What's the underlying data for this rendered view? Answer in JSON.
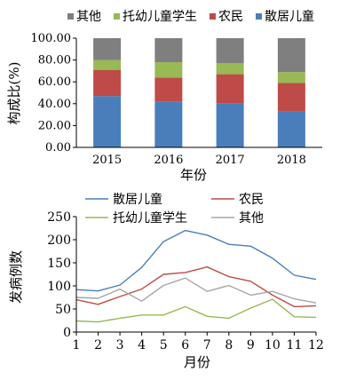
{
  "chart_data": [
    {
      "type": "bar",
      "stacked": true,
      "categories": [
        "2015",
        "2016",
        "2017",
        "2018"
      ],
      "series": [
        {
          "name": "散居儿童",
          "color": "#4a7ebb",
          "values": [
            47,
            42,
            40,
            33
          ]
        },
        {
          "name": "农民",
          "color": "#be4b48",
          "values": [
            24,
            22,
            27,
            26
          ]
        },
        {
          "name": "托幼儿童学生",
          "color": "#98b954",
          "values": [
            9,
            14,
            10,
            10
          ]
        },
        {
          "name": "其他",
          "color": "#7f7f7f",
          "values": [
            20,
            22,
            23,
            31
          ]
        }
      ],
      "legend_order": [
        3,
        2,
        1,
        0
      ],
      "legend_position": "top",
      "xlabel": "年份",
      "ylabel": "构成比(%)",
      "ylim": [
        0,
        100
      ],
      "yticks": [
        "0.00",
        "20.00",
        "40.00",
        "60.00",
        "80.00",
        "100.00"
      ],
      "grid": false
    },
    {
      "type": "line",
      "x": [
        1,
        2,
        3,
        4,
        5,
        6,
        7,
        8,
        9,
        10,
        11,
        12
      ],
      "xticks": [
        "1",
        "2",
        "3",
        "4",
        "5",
        "6",
        "7",
        "8",
        "9",
        "10",
        "11",
        "12"
      ],
      "series": [
        {
          "name": "散居儿童",
          "color": "#4a7ebb",
          "values": [
            92,
            89,
            102,
            140,
            196,
            220,
            210,
            190,
            186,
            160,
            123,
            114
          ]
        },
        {
          "name": "农民",
          "color": "#be4b48",
          "values": [
            70,
            60,
            77,
            93,
            125,
            129,
            141,
            120,
            110,
            80,
            55,
            57
          ]
        },
        {
          "name": "托幼儿童学生",
          "color": "#98b954",
          "values": [
            24,
            22,
            30,
            37,
            37,
            55,
            34,
            30,
            52,
            71,
            33,
            32
          ]
        },
        {
          "name": "其他",
          "color": "#a6a6a6",
          "values": [
            75,
            73,
            93,
            67,
            101,
            117,
            88,
            101,
            80,
            88,
            72,
            63
          ]
        }
      ],
      "legend_position": "top-left",
      "xlabel": "月份",
      "ylabel": "发病例数",
      "ylim": [
        0,
        250
      ],
      "yticks": [
        "0",
        "50",
        "100",
        "150",
        "200",
        "250"
      ],
      "grid": false
    }
  ]
}
